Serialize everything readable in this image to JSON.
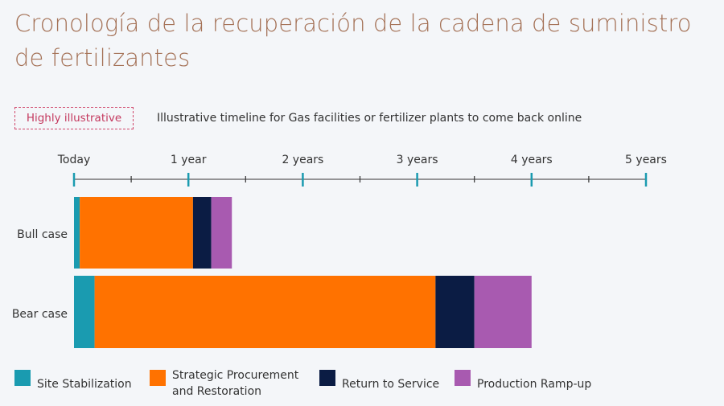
{
  "title": "Cronología de la recuperación de la cadena de suministro de fertilizantes",
  "tag": "Highly illustrative",
  "subtitle": "Illustrative timeline for Gas facilities or fertilizer plants to come back online",
  "chart_data": {
    "type": "bar",
    "orientation": "horizontal",
    "stacked": true,
    "x_unit": "years",
    "xlim": [
      0,
      5
    ],
    "x_ticks": [
      {
        "value": 0,
        "label": "Today"
      },
      {
        "value": 1,
        "label": "1 year"
      },
      {
        "value": 2,
        "label": "2 years"
      },
      {
        "value": 3,
        "label": "3 years"
      },
      {
        "value": 4,
        "label": "4 years"
      },
      {
        "value": 5,
        "label": "5 years"
      }
    ],
    "minor_ticks": [
      0.5,
      1.5,
      2.5,
      3.5,
      4.5
    ],
    "categories": [
      "Bull case",
      "Bear case"
    ],
    "series": [
      {
        "name": "Site Stabilization",
        "color": "#1a9bb0",
        "values": [
          0.05,
          0.18
        ]
      },
      {
        "name": "Strategic Procurement and Restoration",
        "color": "#ff7200",
        "values": [
          0.99,
          2.98
        ]
      },
      {
        "name": "Return to Service",
        "color": "#0b1c44",
        "values": [
          0.16,
          0.34
        ]
      },
      {
        "name": "Production Ramp-up",
        "color": "#a85ab0",
        "values": [
          0.18,
          0.5
        ]
      }
    ],
    "legend": {
      "position": "bottom",
      "labels": [
        "Site Stabilization",
        "Strategic Procurement",
        "and Restoration",
        "Return to Service",
        "Production Ramp-up"
      ]
    }
  }
}
